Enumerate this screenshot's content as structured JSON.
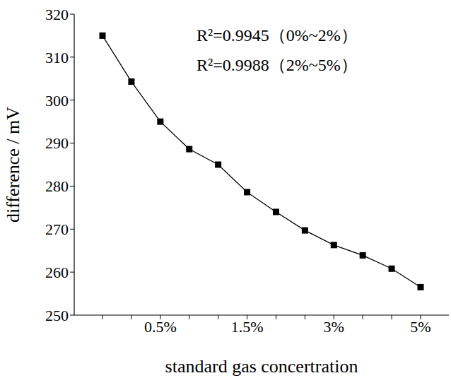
{
  "chart_data": {
    "type": "line",
    "x_label": "standard gas concertration",
    "y_label": "difference / mV",
    "annotations": [
      "R²=0.9945（0%~2%）",
      "R²=0.9988（2%~5%）"
    ],
    "categories": [
      null,
      null,
      "0.5%",
      null,
      null,
      "1.5%",
      null,
      null,
      "3%",
      null,
      null,
      "5%"
    ],
    "values": [
      315,
      304.3,
      295,
      288.6,
      285,
      278.6,
      274,
      269.7,
      266.3,
      263.9,
      260.8,
      256.5
    ],
    "color": "#000000",
    "marker": "square",
    "line_style": "solid",
    "ylim": [
      250,
      320
    ],
    "yticks": [
      250,
      260,
      270,
      280,
      290,
      300,
      310,
      320
    ],
    "grid": false
  }
}
